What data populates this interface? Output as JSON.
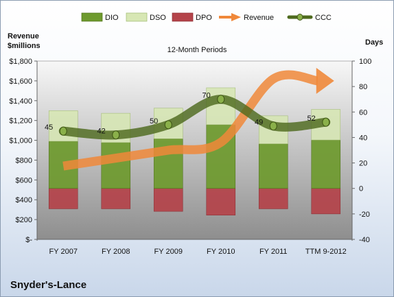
{
  "company": "Snyder's-Lance",
  "chart_data": {
    "type": "bar",
    "title": "12-Month Periods",
    "left_axis_title_line1": "Revenue",
    "left_axis_title_line2": "$millions",
    "right_axis_title": "Days",
    "categories": [
      "FY 2007",
      "FY 2008",
      "FY 2009",
      "FY 2010",
      "FY 2011",
      "TTM 9-2012"
    ],
    "left_ylim": [
      0,
      1800
    ],
    "left_ticks": [
      "$-",
      "$200",
      "$400",
      "$600",
      "$800",
      "$1,000",
      "$1,200",
      "$1,400",
      "$1,600",
      "$1,800"
    ],
    "right_ylim": [
      -40,
      100
    ],
    "right_ticks": [
      "-40",
      "-20",
      "0",
      "20",
      "40",
      "60",
      "80",
      "100"
    ],
    "legend": [
      "DIO",
      "DSO",
      "DPO",
      "Revenue",
      "CCC"
    ],
    "legend_position": "top",
    "grid": false,
    "series": [
      {
        "name": "DIO",
        "axis": "right",
        "color": "#6e9a2e",
        "values": [
          37,
          36,
          39,
          50,
          35,
          38
        ]
      },
      {
        "name": "DSO",
        "axis": "right",
        "color": "#d7e7b4",
        "values": [
          24,
          23,
          24,
          29,
          22,
          24
        ]
      },
      {
        "name": "DPO",
        "axis": "right",
        "color": "#b4434a",
        "values": [
          -16,
          -16,
          -18,
          -21,
          -16,
          -20
        ]
      },
      {
        "name": "Revenue",
        "axis": "left",
        "color": "#f0883a",
        "values": [
          740,
          820,
          900,
          980,
          1620,
          1600
        ]
      },
      {
        "name": "CCC",
        "axis": "right",
        "color": "#4e6a1e",
        "values": [
          45,
          42,
          50,
          70,
          49,
          52
        ]
      }
    ],
    "ccc_labels": [
      "45",
      "42",
      "50",
      "70",
      "49",
      "52"
    ]
  }
}
